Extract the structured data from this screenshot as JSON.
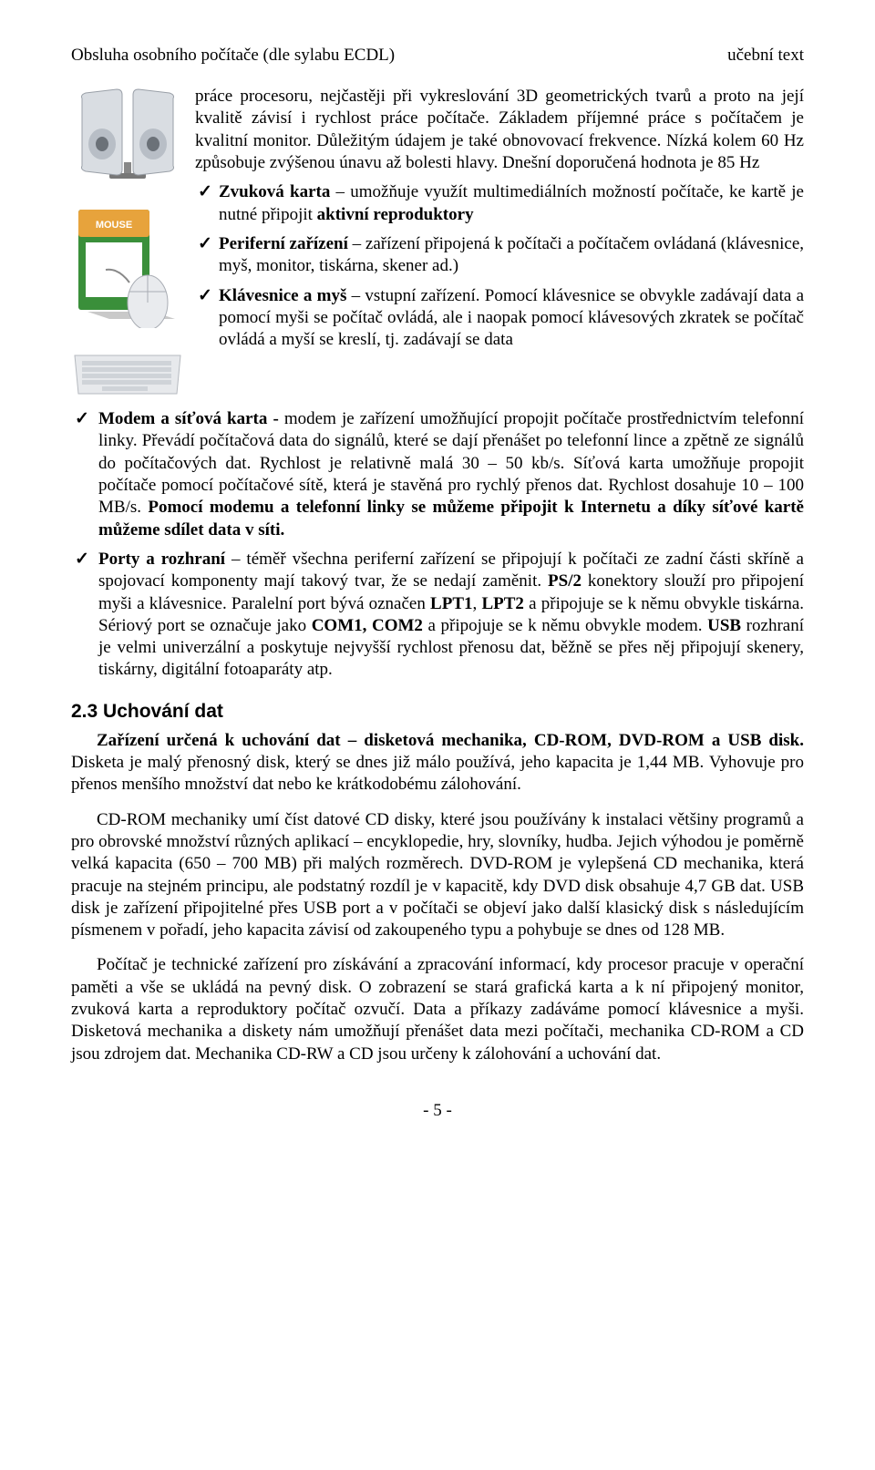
{
  "header": {
    "left": "Obsluha osobního počítače (dle sylabu ECDL)",
    "right": "učební text"
  },
  "intro": "práce procesoru, nejčastěji při vykreslování 3D geometrických tvarů a proto na její kvalitě závisí i rychlost práce počítače. Základem příjemné práce s počítačem je kvalitní monitor. Důležitým údajem je také obnovovací frekvence. Nízká kolem 60 Hz způsobuje zvýšenou únavu až bolesti hlavy. Dnešní doporučená hodnota je 85 Hz",
  "sideChecks": [
    {
      "boldLead": "Zvuková karta",
      "rest": " – umožňuje využít multimediálních možností počítače, ke kartě je nutné připojit ",
      "boldTail": "aktivní reproduktory",
      "end": ""
    },
    {
      "boldLead": "Periferní zařízení",
      "rest": " – zařízení připojená k počítači a počítačem ovládaná (klávesnice, myš, monitor, tiskárna, skener ad.)",
      "boldTail": "",
      "end": ""
    },
    {
      "boldLead": "Klávesnice a myš",
      "rest": " – vstupní zařízení. Pomocí klávesnice se obvykle zadávají data a pomocí myši se počítač ovládá, ale i naopak pomocí klávesových zkratek se počítač ovládá a myší se kreslí, tj. zadávají se data",
      "boldTail": "",
      "end": ""
    }
  ],
  "fullChecks": [
    {
      "html": "<span class=\"bold\">Modem a síťová karta - </span>modem je zařízení umožňující propojit počítače prostřednictvím telefonní linky. Převádí počítačová data do signálů, které se dají přenášet po telefonní lince a zpětně ze signálů do počítačových dat. Rychlost je relativně malá 30 – 50 kb/s. Síťová karta umožňuje propojit počítače pomocí počítačové sítě, která je stavěná pro rychlý přenos dat. Rychlost dosahuje 10 – 100 MB/s. <span class=\"bold\">Pomocí modemu a telefonní linky se můžeme připojit k Internetu a díky síťové kartě můžeme sdílet data v síti.</span>"
    },
    {
      "html": "<span class=\"bold\">Porty a rozhraní</span> – téměř všechna periferní zařízení se připojují k počítači ze zadní části skříně a spojovací komponenty mají takový tvar, že se nedají zaměnit. <span class=\"bold\">PS/2</span> konektory slouží pro připojení myši a klávesnice. Paralelní port bývá označen <span class=\"bold\">LPT1</span>, <span class=\"bold\">LPT2</span> a připojuje se k němu obvykle tiskárna. Sériový port se označuje jako <span class=\"bold\">COM1, COM2</span> a připojuje se k němu obvykle modem. <span class=\"bold\">USB</span> rozhraní je velmi univerzální a poskytuje nejvyšší rychlost přenosu dat, běžně se přes něj připojují skenery, tiskárny, digitální fotoaparáty atp."
    }
  ],
  "section": {
    "heading": "2.3 Uchování dat",
    "p1": {
      "html": "<span class=\"bold\">Zařízení určená k uchování dat – disketová mechanika, CD-ROM, DVD-ROM a USB disk.</span> Disketa je malý přenosný disk, který se dnes již málo používá, jeho kapacita je 1,44 MB. Vyhovuje pro přenos menšího množství dat nebo ke krátkodobému zálohování."
    },
    "p2": "CD-ROM mechaniky umí číst datové CD disky, které jsou používány k instalaci většiny programů a pro obrovské množství různých aplikací – encyklopedie, hry, slovníky, hudba. Jejich výhodou je poměrně velká kapacita (650 – 700 MB) při malých rozměrech. DVD-ROM je vylepšená CD mechanika, která pracuje na stejném principu, ale podstatný rozdíl je v kapacitě, kdy DVD disk obsahuje 4,7 GB dat. USB disk je zařízení připojitelné přes USB port a v počítači se objeví jako další klasický disk s následujícím písmenem v pořadí, jeho kapacita závisí od zakoupeného typu a pohybuje se dnes od 128 MB.",
    "p3": "Počítač je technické zařízení pro získávání a zpracování informací, kdy procesor pracuje v operační paměti a vše se ukládá na pevný disk. O zobrazení se stará grafická karta a k ní připojený monitor, zvuková karta a reproduktory počítač ozvučí. Data a příkazy zadáváme pomocí klávesnice a myši. Disketová mechanika a diskety nám umožňují přenášet data mezi počítači, mechanika CD-ROM a CD jsou zdrojem dat. Mechanika CD-RW a CD jsou určeny k zálohování a uchování dat."
  },
  "footer": "- 5 -"
}
